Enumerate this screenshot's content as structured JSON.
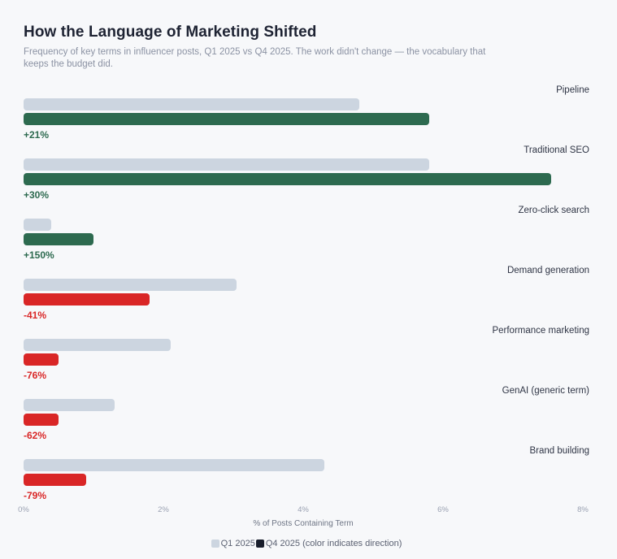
{
  "header": {
    "title": "How the Language of Marketing Shifted",
    "subtitle": "Frequency of key terms in influencer posts, Q1 2025 vs Q4 2025. The work didn't change — the vocabulary that keeps the budget did."
  },
  "chart_data": {
    "type": "bar",
    "orientation": "horizontal",
    "title": "How the Language of Marketing Shifted",
    "xlabel": "% of Posts Containing Term",
    "xlim": [
      0,
      8
    ],
    "x_ticks": [
      "0%",
      "2%",
      "4%",
      "6%",
      "8%"
    ],
    "grid": false,
    "legend_position": "bottom-center",
    "categories": [
      "Pipeline",
      "Traditional SEO",
      "Zero-click search",
      "Demand generation",
      "Performance marketing",
      "GenAI (generic term)",
      "Brand building"
    ],
    "series": [
      {
        "name": "Q1 2025",
        "values": [
          4.8,
          5.8,
          0.4,
          3.05,
          2.1,
          1.3,
          4.3
        ]
      },
      {
        "name": "Q4 2025",
        "values": [
          5.8,
          7.55,
          1.0,
          1.8,
          0.5,
          0.5,
          0.9
        ]
      }
    ],
    "changes": [
      "+21%",
      "+30%",
      "+150%",
      "-41%",
      "-76%",
      "-62%",
      "-79%"
    ],
    "legend": [
      {
        "label": "Q1 2025",
        "color": "#ccd5e0"
      },
      {
        "label": "Q4 2025 (color indicates direction)",
        "color": "#181d2b"
      }
    ],
    "colors": {
      "q1_bar": "#ccd5e0",
      "increase": "#2d6a4f",
      "decrease": "#d92626",
      "background": "#f7f8fa"
    }
  }
}
